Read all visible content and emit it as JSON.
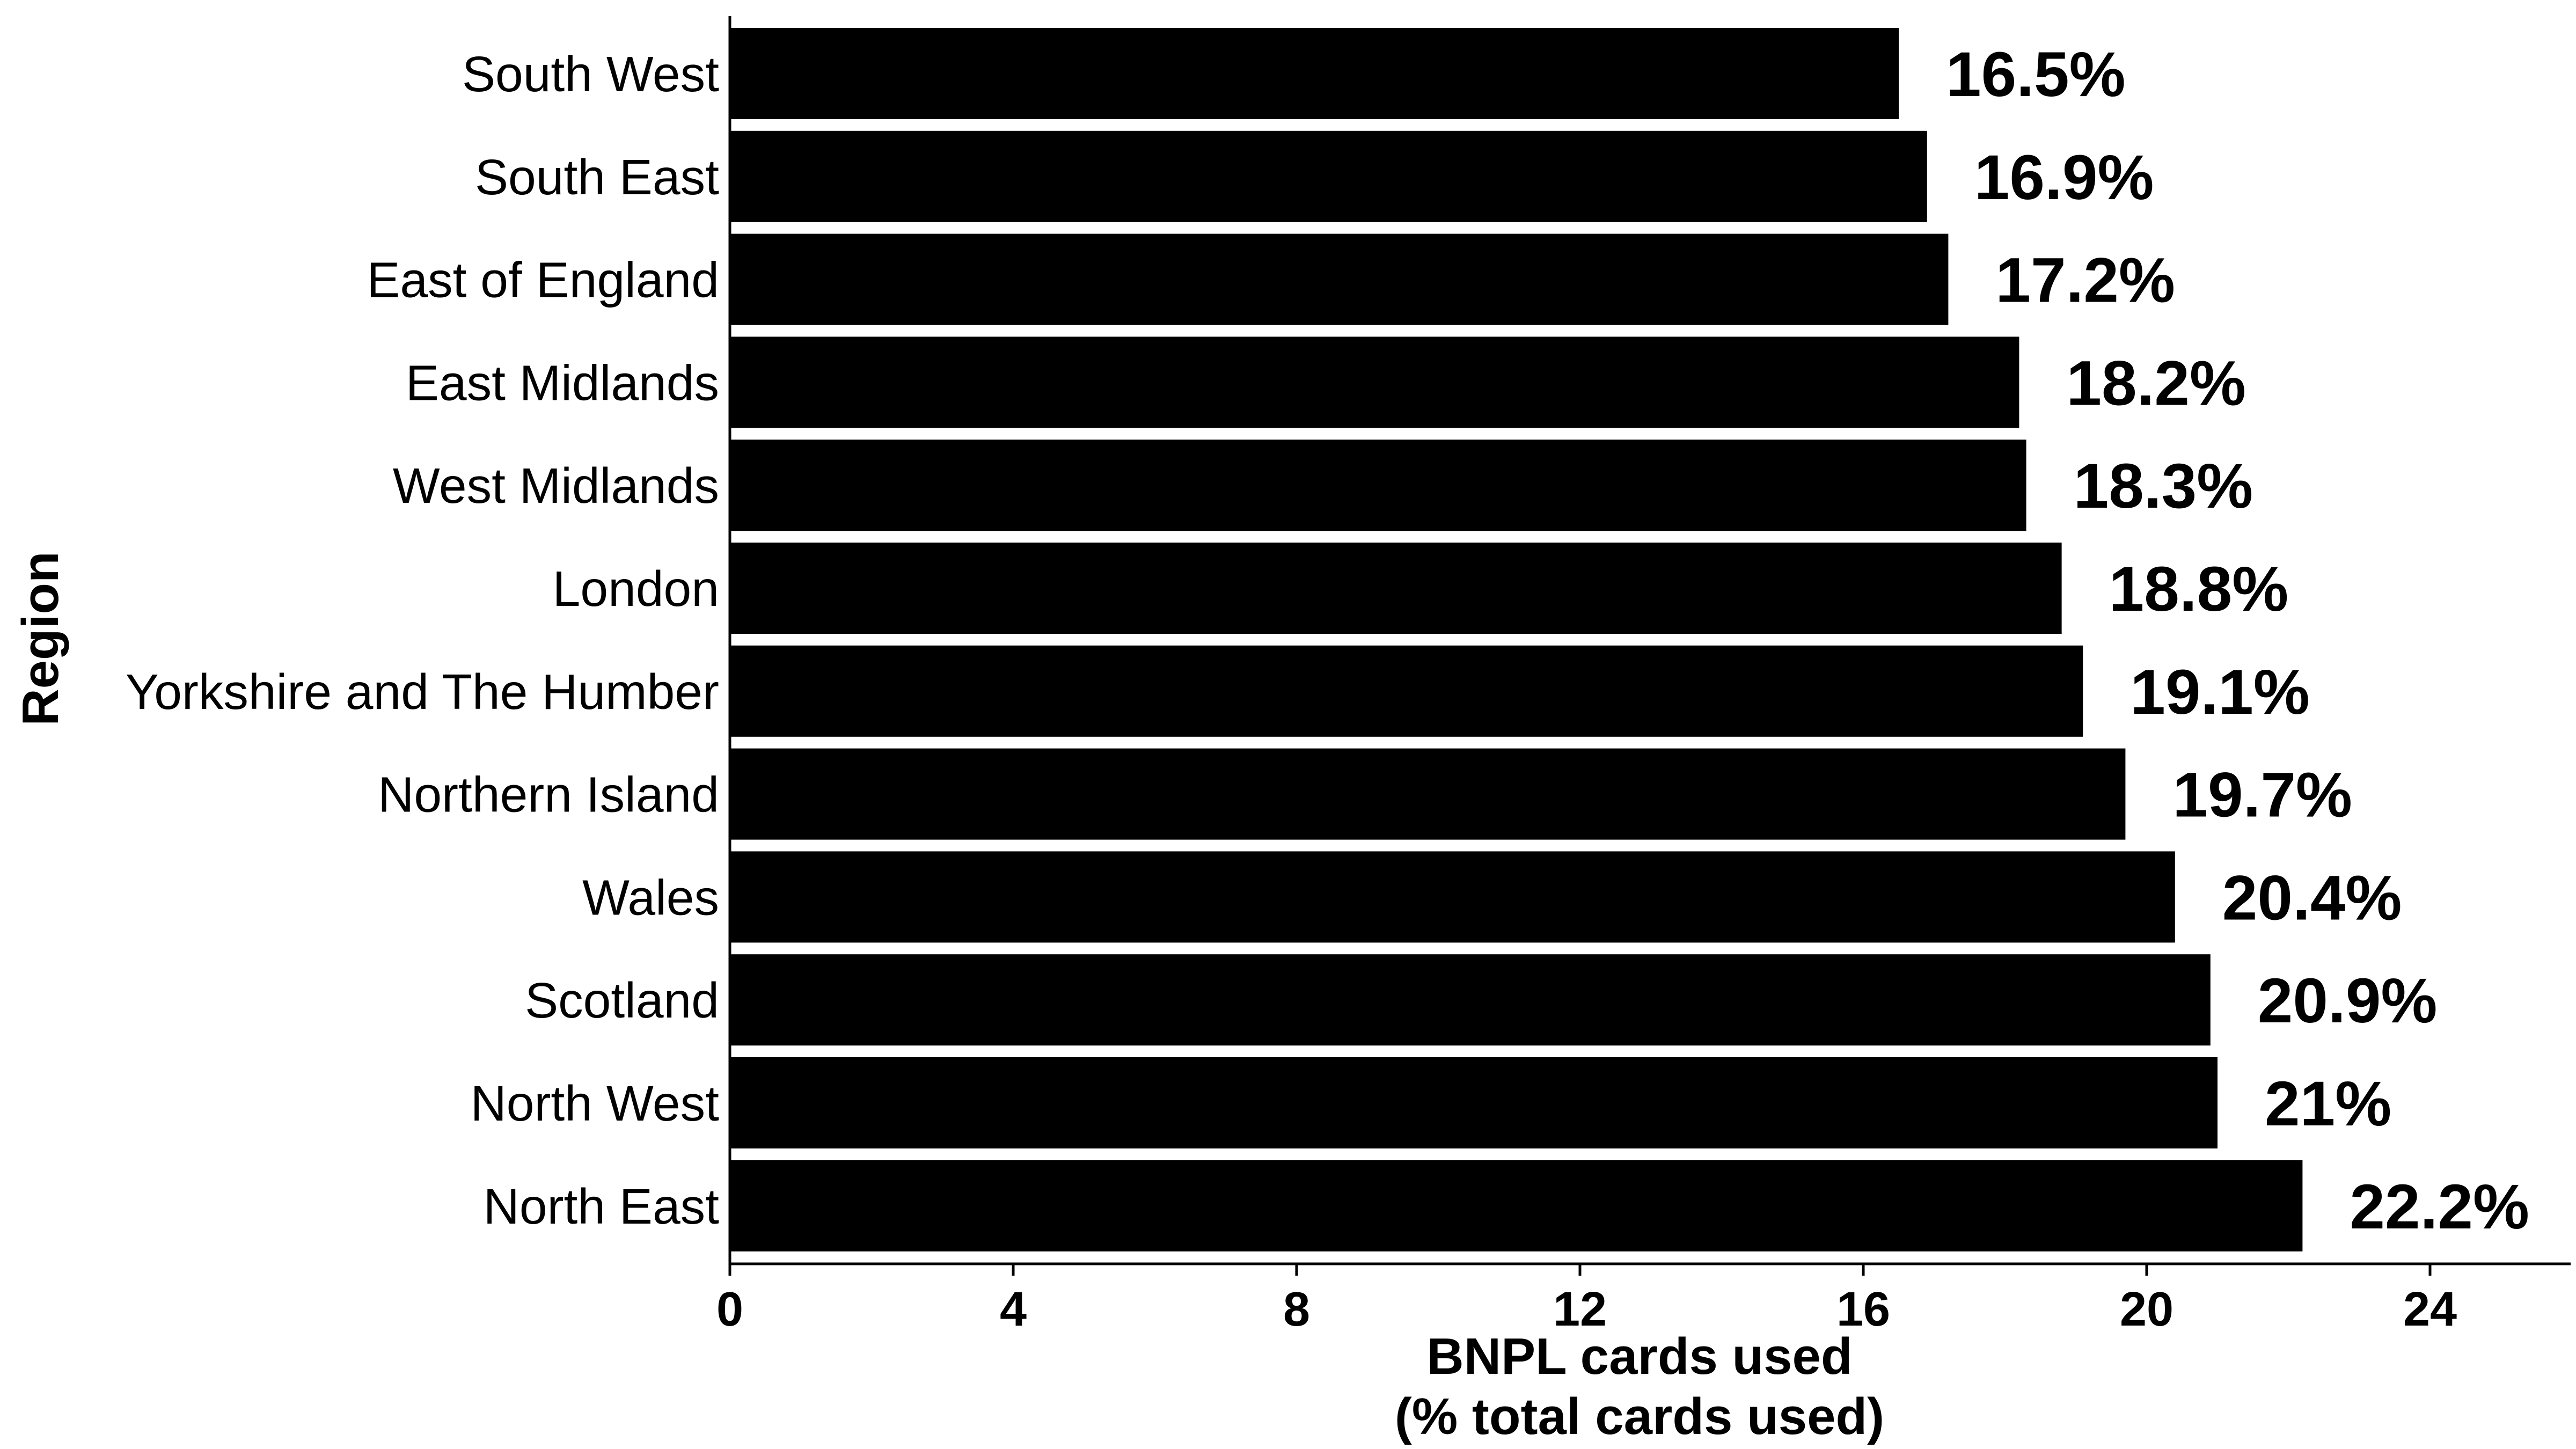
{
  "chart_data": {
    "type": "bar",
    "orientation": "horizontal",
    "categories": [
      "South West",
      "South East",
      "East of England",
      "East Midlands",
      "West Midlands",
      "London",
      "Yorkshire and The Humber",
      "Northern Island",
      "Wales",
      "Scotland",
      "North West",
      "North East"
    ],
    "values": [
      16.5,
      16.9,
      17.2,
      18.2,
      18.3,
      18.8,
      19.1,
      19.7,
      20.4,
      20.9,
      21.0,
      22.2
    ],
    "data_labels": [
      "16.5%",
      "16.9%",
      "17.2%",
      "18.2%",
      "18.3%",
      "18.8%",
      "19.1%",
      "19.7%",
      "20.4%",
      "20.9%",
      "21%",
      "22.2%"
    ],
    "title": "",
    "xlabel_lines": [
      "BNPL cards used",
      "(% total cards used)"
    ],
    "ylabel": "Region",
    "xlim": [
      0,
      26
    ],
    "xticks": [
      0,
      4,
      8,
      12,
      16,
      20,
      24
    ],
    "grid": false,
    "legend": "none",
    "colors": {
      "bar": "#000000",
      "background": "#ffffff",
      "text": "#000000"
    }
  }
}
